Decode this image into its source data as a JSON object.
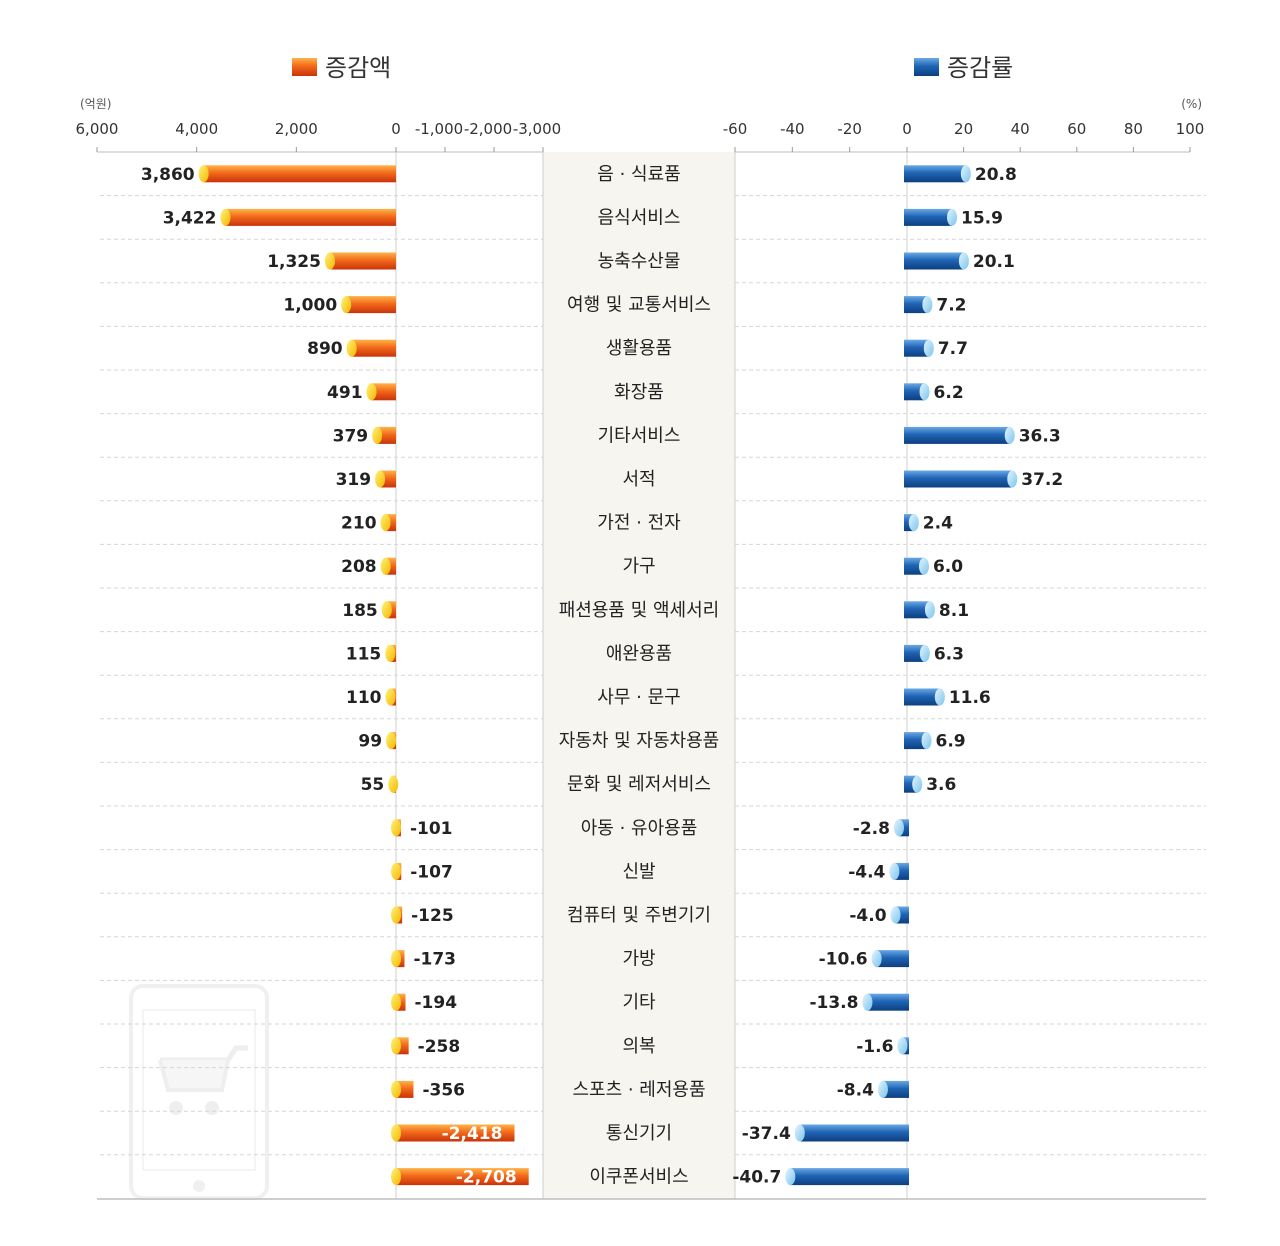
{
  "chart_data": {
    "type": "bar",
    "legend": {
      "amount": "증감액",
      "rate": "증감률"
    },
    "units": {
      "amount": "(억원)",
      "rate": "(%)"
    },
    "amount_axis": {
      "positive_ticks": [
        "6,000",
        "4,000",
        "2,000",
        "0"
      ],
      "negative_ticks": [
        "-1,000",
        "-2,000",
        "-3,000"
      ],
      "positive_range": [
        0,
        6000
      ],
      "negative_range": [
        0,
        -3000
      ]
    },
    "rate_axis": {
      "ticks": [
        "-60",
        "-40",
        "-20",
        "0",
        "20",
        "40",
        "60",
        "80",
        "100"
      ],
      "range": [
        -60,
        100
      ]
    },
    "colors": {
      "amount": "#f26a1b",
      "amount_cap": "#ffd200",
      "rate": "#1f64b4",
      "rate_cap": "#9fd6f2",
      "center_band": "#f6f5ef"
    },
    "categories": [
      "음 · 식료품",
      "음식서비스",
      "농축수산물",
      "여행 및 교통서비스",
      "생활용품",
      "화장품",
      "기타서비스",
      "서적",
      "가전 · 전자",
      "가구",
      "패션용품 및 액세서리",
      "애완용품",
      "사무 · 문구",
      "자동차 및 자동차용품",
      "문화 및 레저서비스",
      "아동 · 유아용품",
      "신발",
      "컴퓨터 및 주변기기",
      "가방",
      "기타",
      "의복",
      "스포츠 · 레저용품",
      "통신기기",
      "이쿠폰서비스"
    ],
    "series": [
      {
        "name": "증감액",
        "values": [
          3860,
          3422,
          1325,
          1000,
          890,
          491,
          379,
          319,
          210,
          208,
          185,
          115,
          110,
          99,
          55,
          -101,
          -107,
          -125,
          -173,
          -194,
          -258,
          -356,
          -2418,
          -2708
        ],
        "labels": [
          "3,860",
          "3,422",
          "1,325",
          "1,000",
          "890",
          "491",
          "379",
          "319",
          "210",
          "208",
          "185",
          "115",
          "110",
          "99",
          "55",
          "-101",
          "-107",
          "-125",
          "-173",
          "-194",
          "-258",
          "-356",
          "-2,418",
          "-2,708"
        ]
      },
      {
        "name": "증감률",
        "values": [
          20.8,
          15.9,
          20.1,
          7.2,
          7.7,
          6.2,
          36.3,
          37.2,
          2.4,
          6.0,
          8.1,
          6.3,
          11.6,
          6.9,
          3.6,
          -2.8,
          -4.4,
          -4.0,
          -10.6,
          -13.8,
          -1.6,
          -8.4,
          -37.4,
          -40.7
        ],
        "labels": [
          "20.8",
          "15.9",
          "20.1",
          "7.2",
          "7.7",
          "6.2",
          "36.3",
          "37.2",
          "2.4",
          "6.0",
          "8.1",
          "6.3",
          "11.6",
          "6.9",
          "3.6",
          "-2.8",
          "-4.4",
          "-4.0",
          "-10.6",
          "-13.8",
          "-1.6",
          "-8.4",
          "-37.4",
          "-40.7"
        ]
      }
    ]
  }
}
